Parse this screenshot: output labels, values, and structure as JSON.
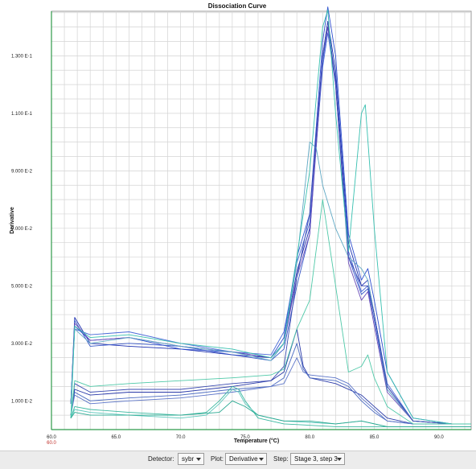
{
  "chart_data": {
    "type": "line",
    "title": "Dissociation Curve",
    "xlabel": "Temperature (°C)",
    "ylabel": "Derivative",
    "xlim": [
      60.0,
      92.5
    ],
    "ylim": [
      0.0,
      0.1455
    ],
    "x_ticks": [
      {
        "value": 60.0,
        "label": "60.0"
      },
      {
        "value": 65.0,
        "label": "65.0"
      },
      {
        "value": 70.0,
        "label": "70.0"
      },
      {
        "value": 75.0,
        "label": "75.0"
      },
      {
        "value": 80.0,
        "label": "80.0"
      },
      {
        "value": 85.0,
        "label": "85.0"
      },
      {
        "value": 90.0,
        "label": "90.0"
      }
    ],
    "x_origin_secondary_label": "60.0",
    "y_ticks": [
      {
        "value": 0.01,
        "label": "1.000 E-2"
      },
      {
        "value": 0.03,
        "label": "3.000 E-2"
      },
      {
        "value": 0.05,
        "label": "5.000 E-2"
      },
      {
        "value": 0.07,
        "label": "7.000 E-2"
      },
      {
        "value": 0.09,
        "label": "9.000 E-2"
      },
      {
        "value": 0.11,
        "label": "1.100 E-1"
      },
      {
        "value": 0.13,
        "label": "1.300 E-1"
      }
    ],
    "grid": true,
    "series": [
      {
        "color": "#1c2fb0",
        "points": [
          [
            61.5,
            0.009
          ],
          [
            61.8,
            0.039
          ],
          [
            63,
            0.03
          ],
          [
            66,
            0.029
          ],
          [
            70,
            0.028
          ],
          [
            74,
            0.026
          ],
          [
            77,
            0.025
          ],
          [
            78,
            0.03
          ],
          [
            79,
            0.055
          ],
          [
            80,
            0.07
          ],
          [
            81,
            0.13
          ],
          [
            81.4,
            0.142
          ],
          [
            82,
            0.125
          ],
          [
            83,
            0.065
          ],
          [
            84,
            0.05
          ],
          [
            84.5,
            0.052
          ],
          [
            85,
            0.04
          ],
          [
            86,
            0.015
          ],
          [
            88,
            0.003
          ],
          [
            91,
            0.002
          ],
          [
            92.5,
            0.002
          ]
        ]
      },
      {
        "color": "#2e4fd0",
        "points": [
          [
            61.5,
            0.009
          ],
          [
            61.8,
            0.036
          ],
          [
            63,
            0.031
          ],
          [
            66,
            0.032
          ],
          [
            70,
            0.028
          ],
          [
            74,
            0.027
          ],
          [
            77,
            0.025
          ],
          [
            78,
            0.032
          ],
          [
            79,
            0.06
          ],
          [
            80,
            0.075
          ],
          [
            81,
            0.135
          ],
          [
            81.4,
            0.147
          ],
          [
            82,
            0.13
          ],
          [
            83,
            0.068
          ],
          [
            84,
            0.052
          ],
          [
            84.5,
            0.056
          ],
          [
            85,
            0.045
          ],
          [
            86,
            0.02
          ],
          [
            88,
            0.004
          ],
          [
            91,
            0.002
          ],
          [
            92.5,
            0.002
          ]
        ]
      },
      {
        "color": "#3555c8",
        "points": [
          [
            61.5,
            0.009
          ],
          [
            61.8,
            0.038
          ],
          [
            63,
            0.029
          ],
          [
            66,
            0.03
          ],
          [
            70,
            0.029
          ],
          [
            74,
            0.026
          ],
          [
            77,
            0.024
          ],
          [
            78,
            0.028
          ],
          [
            79,
            0.05
          ],
          [
            80,
            0.068
          ],
          [
            81,
            0.128
          ],
          [
            81.4,
            0.14
          ],
          [
            82,
            0.122
          ],
          [
            83,
            0.06
          ],
          [
            84,
            0.047
          ],
          [
            84.5,
            0.049
          ],
          [
            85,
            0.038
          ],
          [
            86,
            0.014
          ],
          [
            88,
            0.003
          ],
          [
            91,
            0.002
          ],
          [
            92.5,
            0.002
          ]
        ]
      },
      {
        "color": "#4a6ad8",
        "points": [
          [
            61.5,
            0.009
          ],
          [
            61.8,
            0.035
          ],
          [
            63,
            0.033
          ],
          [
            66,
            0.034
          ],
          [
            70,
            0.03
          ],
          [
            74,
            0.027
          ],
          [
            77,
            0.026
          ],
          [
            78,
            0.034
          ],
          [
            79,
            0.058
          ],
          [
            80,
            0.072
          ],
          [
            81,
            0.126
          ],
          [
            81.4,
            0.138
          ],
          [
            82,
            0.12
          ],
          [
            83,
            0.062
          ],
          [
            84,
            0.048
          ],
          [
            84.5,
            0.05
          ],
          [
            85,
            0.04
          ],
          [
            86,
            0.016
          ],
          [
            88,
            0.003
          ],
          [
            91,
            0.002
          ],
          [
            92.5,
            0.002
          ]
        ]
      },
      {
        "color": "#6a4cb8",
        "points": [
          [
            61.5,
            0.009
          ],
          [
            61.8,
            0.037
          ],
          [
            63,
            0.031
          ],
          [
            66,
            0.032
          ],
          [
            70,
            0.029
          ],
          [
            74,
            0.027
          ],
          [
            77,
            0.025
          ],
          [
            78,
            0.03
          ],
          [
            79,
            0.053
          ],
          [
            80,
            0.068
          ],
          [
            81,
            0.13
          ],
          [
            81.4,
            0.14
          ],
          [
            82,
            0.12
          ],
          [
            83,
            0.058
          ],
          [
            84,
            0.045
          ],
          [
            84.5,
            0.048
          ],
          [
            85,
            0.036
          ],
          [
            86,
            0.013
          ],
          [
            88,
            0.003
          ],
          [
            91,
            0.002
          ],
          [
            92.5,
            0.002
          ]
        ]
      },
      {
        "color": "#5fa8c4",
        "points": [
          [
            61.5,
            0.009
          ],
          [
            61.8,
            0.035
          ],
          [
            63,
            0.03
          ],
          [
            66,
            0.032
          ],
          [
            70,
            0.029
          ],
          [
            74,
            0.027
          ],
          [
            77,
            0.024
          ],
          [
            78,
            0.03
          ],
          [
            79,
            0.058
          ],
          [
            80,
            0.1
          ],
          [
            80.5,
            0.098
          ],
          [
            81,
            0.085
          ],
          [
            82,
            0.07
          ],
          [
            83,
            0.06
          ],
          [
            84,
            0.056
          ],
          [
            84.5,
            0.052
          ],
          [
            85,
            0.04
          ],
          [
            86,
            0.014
          ],
          [
            88,
            0.003
          ],
          [
            91,
            0.002
          ],
          [
            92.5,
            0.002
          ]
        ]
      },
      {
        "color": "#3a4ab0",
        "points": [
          [
            61.5,
            0.005
          ],
          [
            61.8,
            0.016
          ],
          [
            63,
            0.013
          ],
          [
            66,
            0.014
          ],
          [
            70,
            0.014
          ],
          [
            74,
            0.016
          ],
          [
            77,
            0.017
          ],
          [
            78,
            0.022
          ],
          [
            79,
            0.053
          ],
          [
            80,
            0.075
          ],
          [
            81,
            0.13
          ],
          [
            81.4,
            0.142
          ],
          [
            82,
            0.12
          ],
          [
            83,
            0.06
          ],
          [
            84,
            0.05
          ],
          [
            84.5,
            0.05
          ],
          [
            85,
            0.04
          ],
          [
            86,
            0.015
          ],
          [
            88,
            0.003
          ],
          [
            91,
            0.002
          ],
          [
            92.5,
            0.002
          ]
        ]
      },
      {
        "color": "#2838a8",
        "points": [
          [
            61.5,
            0.005
          ],
          [
            61.8,
            0.014
          ],
          [
            63,
            0.012
          ],
          [
            66,
            0.013
          ],
          [
            70,
            0.013
          ],
          [
            74,
            0.015
          ],
          [
            77,
            0.017
          ],
          [
            78,
            0.02
          ],
          [
            79,
            0.035
          ],
          [
            79.5,
            0.022
          ],
          [
            80,
            0.018
          ],
          [
            82,
            0.016
          ],
          [
            84,
            0.012
          ],
          [
            85,
            0.008
          ],
          [
            86,
            0.004
          ],
          [
            88,
            0.002
          ],
          [
            91,
            0.002
          ],
          [
            92.5,
            0.002
          ]
        ]
      },
      {
        "color": "#4868c0",
        "points": [
          [
            61.5,
            0.005
          ],
          [
            61.8,
            0.013
          ],
          [
            63,
            0.01
          ],
          [
            66,
            0.011
          ],
          [
            70,
            0.012
          ],
          [
            74,
            0.014
          ],
          [
            77,
            0.015
          ],
          [
            78,
            0.018
          ],
          [
            79,
            0.03
          ],
          [
            79.5,
            0.021
          ],
          [
            80,
            0.018
          ],
          [
            82,
            0.017
          ],
          [
            83,
            0.015
          ],
          [
            84,
            0.01
          ],
          [
            85,
            0.006
          ],
          [
            86,
            0.003
          ],
          [
            88,
            0.002
          ],
          [
            91,
            0.002
          ],
          [
            92.5,
            0.002
          ]
        ]
      },
      {
        "color": "#5b74c8",
        "points": [
          [
            61.5,
            0.005
          ],
          [
            61.8,
            0.012
          ],
          [
            63,
            0.009
          ],
          [
            66,
            0.01
          ],
          [
            70,
            0.011
          ],
          [
            74,
            0.013
          ],
          [
            77,
            0.015
          ],
          [
            78,
            0.016
          ],
          [
            79,
            0.025
          ],
          [
            79.5,
            0.02
          ],
          [
            80,
            0.019
          ],
          [
            82,
            0.018
          ],
          [
            83,
            0.016
          ],
          [
            84,
            0.011
          ],
          [
            85,
            0.007
          ],
          [
            86,
            0.003
          ],
          [
            88,
            0.002
          ],
          [
            91,
            0.002
          ],
          [
            92.5,
            0.002
          ]
        ]
      },
      {
        "color": "#38c0b0",
        "points": [
          [
            61.5,
            0.004
          ],
          [
            61.8,
            0.036
          ],
          [
            63,
            0.032
          ],
          [
            66,
            0.033
          ],
          [
            70,
            0.03
          ],
          [
            74,
            0.028
          ],
          [
            77,
            0.025
          ],
          [
            78,
            0.03
          ],
          [
            79,
            0.06
          ],
          [
            80,
            0.09
          ],
          [
            81,
            0.14
          ],
          [
            81.4,
            0.146
          ],
          [
            82,
            0.11
          ],
          [
            83,
            0.062
          ],
          [
            84,
            0.11
          ],
          [
            84.3,
            0.113
          ],
          [
            85,
            0.07
          ],
          [
            86,
            0.02
          ],
          [
            88,
            0.004
          ],
          [
            91,
            0.002
          ],
          [
            92.5,
            0.002
          ]
        ]
      },
      {
        "color": "#4fc9a8",
        "points": [
          [
            61.5,
            0.004
          ],
          [
            61.8,
            0.017
          ],
          [
            63,
            0.015
          ],
          [
            66,
            0.016
          ],
          [
            70,
            0.017
          ],
          [
            74,
            0.018
          ],
          [
            77,
            0.019
          ],
          [
            78,
            0.021
          ],
          [
            79,
            0.035
          ],
          [
            80,
            0.045
          ],
          [
            81,
            0.08
          ],
          [
            82,
            0.05
          ],
          [
            83,
            0.02
          ],
          [
            84,
            0.022
          ],
          [
            84.5,
            0.026
          ],
          [
            85,
            0.018
          ],
          [
            86,
            0.008
          ],
          [
            88,
            0.002
          ],
          [
            91,
            0.002
          ],
          [
            92.5,
            0.002
          ]
        ]
      },
      {
        "color": "#3ab8a0",
        "points": [
          [
            61.5,
            0.004
          ],
          [
            61.8,
            0.008
          ],
          [
            63,
            0.007
          ],
          [
            66,
            0.006
          ],
          [
            70,
            0.005
          ],
          [
            72,
            0.006
          ],
          [
            73,
            0.01
          ],
          [
            74,
            0.015
          ],
          [
            74.5,
            0.014
          ],
          [
            75,
            0.01
          ],
          [
            76,
            0.004
          ],
          [
            78,
            0.002
          ],
          [
            82,
            0.001
          ],
          [
            92.5,
            0.001
          ]
        ]
      },
      {
        "color": "#5cc8bc",
        "points": [
          [
            61.5,
            0.004
          ],
          [
            61.8,
            0.007
          ],
          [
            63,
            0.006
          ],
          [
            66,
            0.005
          ],
          [
            70,
            0.004
          ],
          [
            72,
            0.005
          ],
          [
            73,
            0.009
          ],
          [
            74,
            0.014
          ],
          [
            74.5,
            0.013
          ],
          [
            75,
            0.009
          ],
          [
            76,
            0.005
          ],
          [
            78,
            0.003
          ],
          [
            82,
            0.002
          ],
          [
            84,
            0.003
          ],
          [
            86,
            0.001
          ],
          [
            92.5,
            0.001
          ]
        ]
      },
      {
        "color": "#28a890",
        "points": [
          [
            61.5,
            0.004
          ],
          [
            61.8,
            0.006
          ],
          [
            63,
            0.005
          ],
          [
            66,
            0.005
          ],
          [
            70,
            0.005
          ],
          [
            73,
            0.006
          ],
          [
            74,
            0.01
          ],
          [
            75,
            0.008
          ],
          [
            76,
            0.005
          ],
          [
            78,
            0.003
          ],
          [
            80,
            0.003
          ],
          [
            82,
            0.002
          ],
          [
            84,
            0.003
          ],
          [
            86,
            0.001
          ],
          [
            92.5,
            0.001
          ]
        ]
      }
    ]
  },
  "controls": {
    "detector_label": "Detector:",
    "detector_value": "sybr",
    "plot_label": "Plot:",
    "plot_value": "Derivative",
    "step_label": "Step:",
    "step_value": "Stage 3, step 3"
  }
}
